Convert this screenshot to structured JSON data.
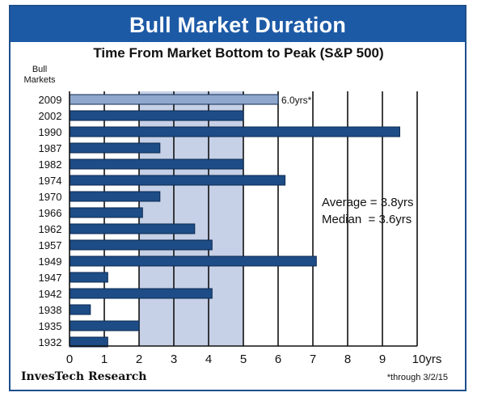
{
  "header": {
    "title": "Bull Market Duration"
  },
  "chart_data": {
    "type": "bar",
    "orientation": "horizontal",
    "title": "Time From Market Bottom to Peak (S&P 500)",
    "ylabel": "Bull Markets",
    "xlabel": "",
    "xlim": [
      0,
      10
    ],
    "x_ticks": [
      "0",
      "1",
      "2",
      "3",
      "4",
      "5",
      "6",
      "7",
      "8",
      "9",
      "10yrs"
    ],
    "categories": [
      "2009",
      "2002",
      "1990",
      "1987",
      "1982",
      "1974",
      "1970",
      "1966",
      "1962",
      "1957",
      "1949",
      "1947",
      "1942",
      "1938",
      "1935",
      "1932"
    ],
    "values": [
      6.0,
      5.0,
      9.5,
      2.6,
      5.0,
      6.2,
      2.6,
      2.1,
      3.6,
      4.1,
      7.1,
      1.1,
      4.1,
      0.6,
      2.0,
      1.1
    ],
    "highlight_range": [
      2,
      5
    ],
    "data_labels": [
      {
        "category": "2009",
        "text": "6.0yrs*"
      }
    ],
    "grid": "vertical",
    "colors": {
      "bar": "#1d4c86",
      "current_bar": "#8fa7cc",
      "highlight": "#c6d0e6",
      "banner": "#1d5aa6"
    }
  },
  "stats": {
    "average": "Average = 3.8yrs",
    "median": "Median  = 3.6yrs"
  },
  "footer": {
    "source": "InvesTech Research",
    "note": "*through 3/2/15"
  }
}
